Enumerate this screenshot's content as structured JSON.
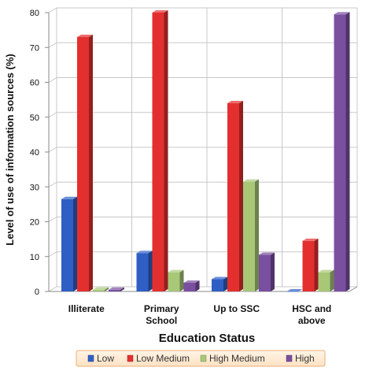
{
  "chart_data": {
    "type": "bar",
    "xlabel": "Education Status",
    "ylabel": "Level of use of information sources (%)",
    "categories": [
      [
        "Illiterate"
      ],
      [
        "Primary",
        "School"
      ],
      [
        "Up to SSC"
      ],
      [
        "HSC and",
        "above"
      ]
    ],
    "ylim": [
      0,
      80
    ],
    "yticks": [
      0,
      10,
      20,
      30,
      40,
      50,
      60,
      70,
      80
    ],
    "grid": true,
    "legend_position": "bottom",
    "series": [
      {
        "name": "Low",
        "color": "#2f5fc4",
        "values": [
          26.5,
          11,
          3.5,
          0
        ]
      },
      {
        "name": "Low Medium",
        "color": "#e3302f",
        "values": [
          73,
          80,
          54,
          14.5
        ]
      },
      {
        "name": "High Medium",
        "color": "#a8c878",
        "values": [
          0.5,
          5.5,
          31.5,
          5.5
        ]
      },
      {
        "name": "High",
        "color": "#7a4fa0",
        "values": [
          0.5,
          2.5,
          10.5,
          79.5
        ]
      }
    ]
  }
}
